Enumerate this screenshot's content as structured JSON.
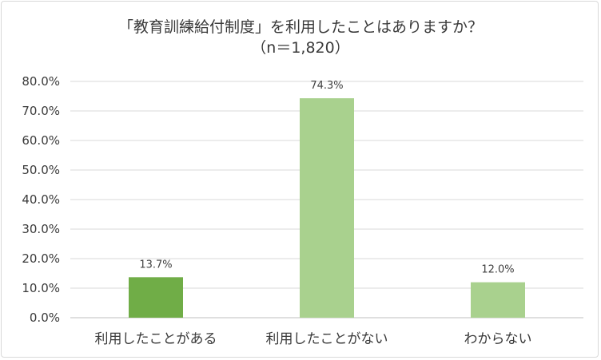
{
  "chart_data": {
    "type": "bar",
    "title_lines": [
      "「教育訓練給付制度」を利用したことはありますか？",
      "（n＝1,820）"
    ],
    "categories": [
      "利用したことがある",
      "利用したことがない",
      "わからない"
    ],
    "values": [
      13.7,
      74.3,
      12.0
    ],
    "data_labels": [
      "13.7%",
      "74.3%",
      "12.0%"
    ],
    "bar_colors": [
      "#70ad47",
      "#a9d18e",
      "#a9d18e"
    ],
    "ylim": [
      0,
      80
    ],
    "y_ticks": [
      0,
      10,
      20,
      30,
      40,
      50,
      60,
      70,
      80
    ],
    "y_tick_labels": [
      "0.0%",
      "10.0%",
      "20.0%",
      "30.0%",
      "40.0%",
      "50.0%",
      "60.0%",
      "70.0%",
      "80.0%"
    ],
    "grid": true,
    "legend": "none"
  }
}
